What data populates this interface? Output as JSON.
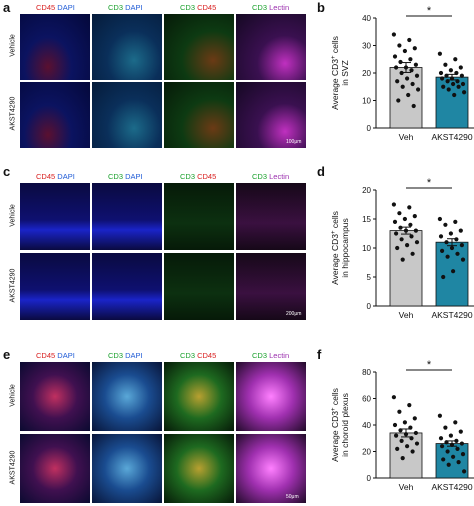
{
  "panels": {
    "a": {
      "letter": "a",
      "headers": [
        {
          "p1": "CD45",
          "p2": "DAPI",
          "c1": "r",
          "c2": "b"
        },
        {
          "p1": "CD3",
          "p2": "DAPI",
          "c1": "g",
          "c2": "b"
        },
        {
          "p1": "CD3",
          "p2": "CD45",
          "c1": "g",
          "c2": "r"
        },
        {
          "p1": "CD3",
          "p2": "Lectin",
          "c1": "g",
          "c2": "m"
        }
      ],
      "rows": [
        "Vehicle",
        "AKST4290"
      ],
      "scale": "100μm"
    },
    "c": {
      "letter": "c",
      "headers": [
        {
          "p1": "CD45",
          "p2": "DAPI",
          "c1": "r",
          "c2": "b"
        },
        {
          "p1": "CD3",
          "p2": "DAPI",
          "c1": "g",
          "c2": "b"
        },
        {
          "p1": "CD3",
          "p2": "CD45",
          "c1": "g",
          "c2": "r"
        },
        {
          "p1": "CD3",
          "p2": "Lectin",
          "c1": "g",
          "c2": "m"
        }
      ],
      "rows": [
        "Vehicle",
        "AKST4290"
      ],
      "scale": "200μm"
    },
    "e": {
      "letter": "e",
      "headers": [
        {
          "p1": "CD45",
          "p2": "DAPI",
          "c1": "r",
          "c2": "b"
        },
        {
          "p1": "CD3",
          "p2": "DAPI",
          "c1": "g",
          "c2": "b"
        },
        {
          "p1": "CD3",
          "p2": "CD45",
          "c1": "g",
          "c2": "r"
        },
        {
          "p1": "CD3",
          "p2": "Lectin",
          "c1": "g",
          "c2": "m"
        }
      ],
      "rows": [
        "Vehicle",
        "AKST4290"
      ],
      "scale": "50μm"
    }
  },
  "chart_data": [
    {
      "panel": "b",
      "type": "bar",
      "categories": [
        "Veh",
        "AKST4290"
      ],
      "values": [
        22,
        18.5
      ],
      "sem": [
        1.8,
        1.0
      ],
      "ylabel_line1": "Average CD3",
      "ylabel_sup": "+",
      "ylabel_line1b": " cells",
      "ylabel_line2": "in SVZ",
      "ylim": [
        0,
        40
      ],
      "yticks": [
        "0",
        "10",
        "20",
        "30",
        "40"
      ],
      "significance": "*",
      "colors": [
        "#c8c8c8",
        "#1f86a3"
      ],
      "points": [
        [
          34,
          32,
          30,
          29,
          28,
          26,
          25,
          24,
          23,
          22,
          22,
          21,
          20,
          19,
          18,
          17,
          16,
          15,
          14,
          12,
          10,
          8
        ],
        [
          27,
          25,
          23,
          22,
          21,
          20,
          20,
          19,
          19,
          18,
          18,
          17,
          17,
          16,
          16,
          15,
          15,
          14,
          13,
          12
        ]
      ]
    },
    {
      "panel": "d",
      "type": "bar",
      "categories": [
        "Veh",
        "AKST4290"
      ],
      "values": [
        13,
        11
      ],
      "sem": [
        0.6,
        0.6
      ],
      "ylabel_line1": "Average CD3",
      "ylabel_sup": "+",
      "ylabel_line1b": " cells",
      "ylabel_line2": "in hippocampus",
      "ylim": [
        0,
        20
      ],
      "yticks": [
        "0",
        "5",
        "10",
        "15",
        "20"
      ],
      "significance": "*",
      "colors": [
        "#c8c8c8",
        "#1f86a3"
      ],
      "points": [
        [
          17.5,
          17,
          16,
          15.5,
          15,
          14.5,
          14,
          13.5,
          13,
          13,
          12.5,
          12,
          11.5,
          11,
          10.5,
          10,
          9,
          8
        ],
        [
          15,
          14.5,
          14,
          13,
          12.5,
          12,
          11.5,
          11,
          10.5,
          10,
          9.5,
          9,
          8.5,
          8,
          6,
          5
        ]
      ]
    },
    {
      "panel": "f",
      "type": "bar",
      "categories": [
        "Veh",
        "AKST4290"
      ],
      "values": [
        34,
        26
      ],
      "sem": [
        3,
        2
      ],
      "ylabel_line1": "Average CD3",
      "ylabel_sup": "+",
      "ylabel_line1b": " cells",
      "ylabel_line2": "in choroid plexus",
      "ylim": [
        0,
        80
      ],
      "yticks": [
        "0",
        "20",
        "40",
        "60",
        "80"
      ],
      "significance": "*",
      "colors": [
        "#c8c8c8",
        "#1f86a3"
      ],
      "points": [
        [
          61,
          55,
          50,
          45,
          42,
          40,
          38,
          36,
          34,
          33,
          32,
          30,
          28,
          26,
          24,
          22,
          20,
          15
        ],
        [
          47,
          42,
          38,
          35,
          32,
          30,
          28,
          27,
          26,
          25,
          24,
          22,
          20,
          18,
          16,
          14,
          12,
          10,
          5
        ]
      ]
    }
  ]
}
